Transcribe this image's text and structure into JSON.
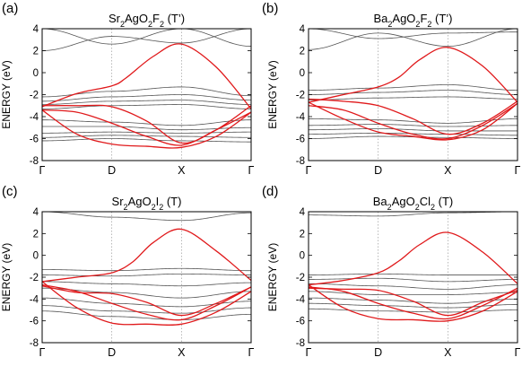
{
  "chart_data": [
    {
      "type": "line",
      "panel_label": "(a)",
      "title_parts": [
        [
          "Sr",
          ""
        ],
        [
          "2",
          "sub"
        ],
        [
          "AgO",
          ""
        ],
        [
          "2",
          "sub"
        ],
        [
          "F",
          ""
        ],
        [
          "2",
          "sub"
        ],
        [
          " (T’)",
          ""
        ]
      ],
      "ylabel": "ENERGY (eV)",
      "ylim": [
        -8,
        4
      ],
      "yticks": [
        4,
        2,
        0,
        -2,
        -4,
        -6,
        -8
      ],
      "x_ticks": [
        {
          "pos": 0,
          "label": "Γ"
        },
        {
          "pos": 1,
          "label": "D"
        },
        {
          "pos": 2,
          "label": "X"
        },
        {
          "pos": 3,
          "label": "Γ"
        }
      ],
      "grid": "dotted vertical lines at D and X",
      "red_bands": [
        {
          "x": [
            0,
            0.5,
            1,
            1.2,
            1.6,
            2,
            2.5,
            3
          ],
          "y": [
            -3.1,
            -1.9,
            -1.2,
            -0.5,
            1.5,
            2.6,
            0.5,
            -3.3
          ]
        },
        {
          "x": [
            0,
            0.5,
            1,
            1.5,
            2,
            2.5,
            3
          ],
          "y": [
            -3.4,
            -3.6,
            -4.6,
            -5.8,
            -6.6,
            -5.2,
            -3.6
          ]
        },
        {
          "x": [
            0,
            0.5,
            1,
            1.5,
            2,
            2.5,
            3
          ],
          "y": [
            -3.4,
            -5.6,
            -6.5,
            -6.7,
            -6.8,
            -5.8,
            -3.6
          ]
        },
        {
          "x": [
            0,
            0.5,
            1,
            1.5,
            2,
            2.5,
            3
          ],
          "y": [
            -3.0,
            -3.0,
            -3.1,
            -4.4,
            -6.4,
            -5.2,
            -3.0
          ]
        }
      ],
      "gray_bands": [
        {
          "x": [
            0,
            1,
            2,
            3
          ],
          "y": [
            4.0,
            2.6,
            4.0,
            2.4
          ]
        },
        {
          "x": [
            0,
            1,
            2,
            3
          ],
          "y": [
            2.0,
            3.3,
            2.7,
            4.0
          ]
        },
        {
          "x": [
            0,
            1,
            2,
            3
          ],
          "y": [
            -2.2,
            -1.7,
            -1.3,
            -2.1
          ]
        },
        {
          "x": [
            0,
            1,
            2,
            3
          ],
          "y": [
            -2.6,
            -2.2,
            -2.0,
            -2.5
          ]
        },
        {
          "x": [
            0,
            1,
            2,
            3
          ],
          "y": [
            -2.9,
            -2.6,
            -2.5,
            -2.9
          ]
        },
        {
          "x": [
            0,
            1,
            2,
            3
          ],
          "y": [
            -3.3,
            -3.0,
            -2.9,
            -3.3
          ]
        },
        {
          "x": [
            0,
            1,
            2,
            3
          ],
          "y": [
            -4.3,
            -4.5,
            -4.8,
            -4.3
          ]
        },
        {
          "x": [
            0,
            1,
            2,
            3
          ],
          "y": [
            -4.9,
            -4.9,
            -5.2,
            -5.0
          ]
        },
        {
          "x": [
            0,
            1,
            2,
            3
          ],
          "y": [
            -5.5,
            -5.4,
            -5.5,
            -5.4
          ]
        },
        {
          "x": [
            0,
            1,
            2,
            3
          ],
          "y": [
            -5.9,
            -5.7,
            -5.8,
            -5.9
          ]
        },
        {
          "x": [
            0,
            1,
            2,
            3
          ],
          "y": [
            -6.2,
            -6.0,
            -6.2,
            -6.3
          ]
        }
      ]
    },
    {
      "type": "line",
      "panel_label": "(b)",
      "title_parts": [
        [
          "Ba",
          ""
        ],
        [
          "2",
          "sub"
        ],
        [
          "AgO",
          ""
        ],
        [
          "2",
          "sub"
        ],
        [
          "F",
          ""
        ],
        [
          "2",
          "sub"
        ],
        [
          " (T’)",
          ""
        ]
      ],
      "ylabel": "ENERGY (eV)",
      "ylim": [
        -8,
        4
      ],
      "yticks": [
        4,
        2,
        0,
        -2,
        -4,
        -6,
        -8
      ],
      "x_ticks": [
        {
          "pos": 0,
          "label": "Γ"
        },
        {
          "pos": 1,
          "label": "D"
        },
        {
          "pos": 2,
          "label": "X"
        },
        {
          "pos": 3,
          "label": "Γ"
        }
      ],
      "grid": "dotted vertical lines at D and X",
      "red_bands": [
        {
          "x": [
            0,
            0.5,
            1,
            1.3,
            1.6,
            2,
            2.5,
            3
          ],
          "y": [
            -2.7,
            -2.0,
            -1.3,
            -0.4,
            1.2,
            2.3,
            0.6,
            -2.7
          ]
        },
        {
          "x": [
            0,
            0.5,
            1,
            1.5,
            2,
            2.5,
            3
          ],
          "y": [
            -3.0,
            -3.4,
            -4.6,
            -5.6,
            -6.0,
            -4.8,
            -2.8
          ]
        },
        {
          "x": [
            0,
            0.5,
            1,
            1.5,
            2,
            2.5,
            3
          ],
          "y": [
            -2.7,
            -4.2,
            -5.4,
            -5.8,
            -6.1,
            -5.2,
            -2.8
          ]
        },
        {
          "x": [
            0,
            0.5,
            1,
            1.5,
            2,
            2.5,
            3
          ],
          "y": [
            -2.4,
            -2.6,
            -3.0,
            -4.2,
            -5.6,
            -4.6,
            -2.6
          ]
        }
      ],
      "gray_bands": [
        {
          "x": [
            0,
            1,
            2,
            3
          ],
          "y": [
            4.0,
            3.1,
            3.6,
            3.7
          ]
        },
        {
          "x": [
            0,
            1,
            2,
            3
          ],
          "y": [
            2.1,
            3.6,
            2.4,
            4.0
          ]
        },
        {
          "x": [
            0,
            1,
            2,
            3
          ],
          "y": [
            -1.6,
            -1.4,
            -1.1,
            -1.6
          ]
        },
        {
          "x": [
            0,
            1,
            2,
            3
          ],
          "y": [
            -2.0,
            -1.8,
            -1.6,
            -2.0
          ]
        },
        {
          "x": [
            0,
            1,
            2,
            3
          ],
          "y": [
            -2.5,
            -2.3,
            -2.2,
            -2.4
          ]
        },
        {
          "x": [
            0,
            1,
            2,
            3
          ],
          "y": [
            -4.2,
            -4.3,
            -4.6,
            -4.2
          ]
        },
        {
          "x": [
            0,
            1,
            2,
            3
          ],
          "y": [
            -4.8,
            -4.7,
            -4.9,
            -4.8
          ]
        },
        {
          "x": [
            0,
            1,
            2,
            3
          ],
          "y": [
            -5.2,
            -5.1,
            -5.3,
            -5.3
          ]
        },
        {
          "x": [
            0,
            1,
            2,
            3
          ],
          "y": [
            -5.6,
            -5.5,
            -5.6,
            -5.7
          ]
        },
        {
          "x": [
            0,
            1,
            2,
            3
          ],
          "y": [
            -6.0,
            -5.8,
            -5.9,
            -6.0
          ]
        }
      ]
    },
    {
      "type": "line",
      "panel_label": "(c)",
      "title_parts": [
        [
          "Sr",
          ""
        ],
        [
          "2",
          "sub"
        ],
        [
          "AgO",
          ""
        ],
        [
          "2",
          "sub"
        ],
        [
          "I",
          ""
        ],
        [
          "2",
          "sub"
        ],
        [
          " (T)",
          ""
        ]
      ],
      "ylabel": "ENERGY (eV)",
      "ylim": [
        -8,
        4
      ],
      "yticks": [
        4,
        2,
        0,
        -2,
        -4,
        -6,
        -8
      ],
      "x_ticks": [
        {
          "pos": 0,
          "label": "Γ"
        },
        {
          "pos": 1,
          "label": "D"
        },
        {
          "pos": 2,
          "label": "X"
        },
        {
          "pos": 3,
          "label": "Γ"
        }
      ],
      "grid": "dotted vertical lines at D and X",
      "red_bands": [
        {
          "x": [
            0,
            0.5,
            1,
            1.3,
            1.6,
            2,
            2.5,
            3
          ],
          "y": [
            -2.4,
            -2.0,
            -1.6,
            -0.6,
            1.2,
            2.4,
            0.4,
            -2.3
          ]
        },
        {
          "x": [
            0,
            0.5,
            1,
            1.5,
            2,
            2.5,
            3
          ],
          "y": [
            -2.7,
            -3.3,
            -4.4,
            -5.4,
            -5.9,
            -4.6,
            -2.9
          ]
        },
        {
          "x": [
            0,
            0.5,
            1,
            1.5,
            2,
            2.5,
            3
          ],
          "y": [
            -2.8,
            -3.4,
            -3.5,
            -4.3,
            -5.5,
            -4.4,
            -2.9
          ]
        },
        {
          "x": [
            0,
            0.5,
            1,
            1.5,
            2,
            2.5,
            3
          ],
          "y": [
            -2.4,
            -4.8,
            -6.2,
            -6.3,
            -6.3,
            -5.2,
            -3.3
          ]
        }
      ],
      "gray_bands": [
        {
          "x": [
            0,
            1,
            2,
            3
          ],
          "y": [
            4.0,
            3.5,
            3.2,
            3.9
          ]
        },
        {
          "x": [
            0,
            1,
            2,
            3
          ],
          "y": [
            -1.3,
            -1.4,
            -1.2,
            -1.4
          ]
        },
        {
          "x": [
            0,
            1,
            2,
            3
          ],
          "y": [
            -1.8,
            -1.9,
            -1.7,
            -1.8
          ]
        },
        {
          "x": [
            0,
            1,
            2,
            3
          ],
          "y": [
            -2.4,
            -2.6,
            -2.8,
            -2.5
          ]
        },
        {
          "x": [
            0,
            1,
            2,
            3
          ],
          "y": [
            -3.0,
            -3.4,
            -3.9,
            -3.3
          ]
        },
        {
          "x": [
            0,
            1,
            2,
            3
          ],
          "y": [
            -3.9,
            -4.4,
            -4.7,
            -4.2
          ]
        },
        {
          "x": [
            0,
            1,
            2,
            3
          ],
          "y": [
            -4.6,
            -5.1,
            -5.3,
            -4.8
          ]
        },
        {
          "x": [
            0,
            1,
            2,
            3
          ],
          "y": [
            -5.1,
            -5.6,
            -5.9,
            -5.4
          ]
        }
      ]
    },
    {
      "type": "line",
      "panel_label": "(d)",
      "title_parts": [
        [
          "Ba",
          ""
        ],
        [
          "2",
          "sub"
        ],
        [
          "AgO",
          ""
        ],
        [
          "2",
          "sub"
        ],
        [
          "Cl",
          ""
        ],
        [
          "2",
          "sub"
        ],
        [
          " (T)",
          ""
        ]
      ],
      "ylabel": "ENERGY (eV)",
      "ylim": [
        -8,
        4
      ],
      "yticks": [
        4,
        2,
        0,
        -2,
        -4,
        -6,
        -8
      ],
      "x_ticks": [
        {
          "pos": 0,
          "label": "Γ"
        },
        {
          "pos": 1,
          "label": "D"
        },
        {
          "pos": 2,
          "label": "X"
        },
        {
          "pos": 3,
          "label": "Γ"
        }
      ],
      "grid": "dotted vertical lines at D and X",
      "red_bands": [
        {
          "x": [
            0,
            0.5,
            1,
            1.3,
            1.6,
            2,
            2.5,
            3
          ],
          "y": [
            -2.7,
            -2.3,
            -1.6,
            -0.5,
            1.0,
            2.1,
            0.3,
            -2.6
          ]
        },
        {
          "x": [
            0,
            0.5,
            1,
            1.5,
            2,
            2.5,
            3
          ],
          "y": [
            -2.9,
            -3.3,
            -4.4,
            -5.3,
            -5.8,
            -4.6,
            -3.0
          ]
        },
        {
          "x": [
            0,
            0.5,
            1,
            1.5,
            2,
            2.5,
            3
          ],
          "y": [
            -3.0,
            -3.1,
            -3.2,
            -4.2,
            -5.5,
            -4.3,
            -3.2
          ]
        },
        {
          "x": [
            0,
            0.5,
            1,
            1.5,
            2,
            2.5,
            3
          ],
          "y": [
            -2.7,
            -4.8,
            -5.8,
            -5.9,
            -6.0,
            -5.1,
            -3.3
          ]
        }
      ],
      "gray_bands": [
        {
          "x": [
            0,
            1,
            2,
            3
          ],
          "y": [
            3.7,
            3.6,
            3.9,
            4.0
          ]
        },
        {
          "x": [
            0,
            1,
            2,
            3
          ],
          "y": [
            -1.8,
            -1.7,
            -1.8,
            -1.8
          ]
        },
        {
          "x": [
            0,
            1,
            2,
            3
          ],
          "y": [
            -2.2,
            -2.1,
            -2.4,
            -2.2
          ]
        },
        {
          "x": [
            0,
            1,
            2,
            3
          ],
          "y": [
            -2.6,
            -2.8,
            -3.1,
            -2.7
          ]
        },
        {
          "x": [
            0,
            1,
            2,
            3
          ],
          "y": [
            -3.3,
            -3.6,
            -3.6,
            -3.4
          ]
        },
        {
          "x": [
            0,
            1,
            2,
            3
          ],
          "y": [
            -3.9,
            -4.1,
            -4.4,
            -4.0
          ]
        },
        {
          "x": [
            0,
            1,
            2,
            3
          ],
          "y": [
            -4.4,
            -4.6,
            -4.8,
            -4.5
          ]
        },
        {
          "x": [
            0,
            1,
            2,
            3
          ],
          "y": [
            -4.9,
            -5.1,
            -5.2,
            -5.0
          ]
        }
      ]
    }
  ]
}
